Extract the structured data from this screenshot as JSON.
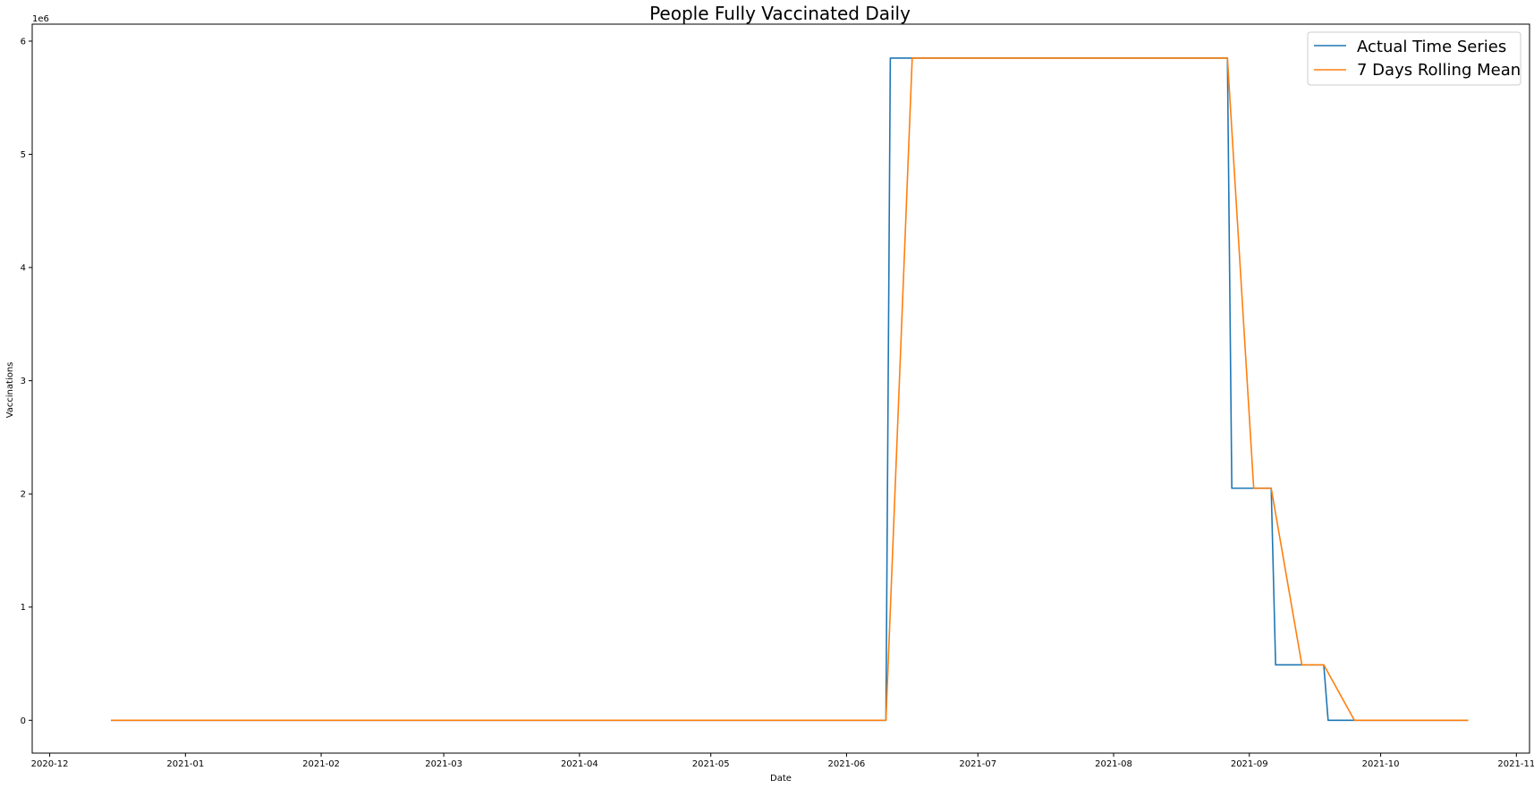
{
  "chart_data": {
    "type": "line",
    "title": "People Fully Vaccinated Daily",
    "xlabel": "Date",
    "ylabel": "Vaccinations",
    "y_offset_label": "1e6",
    "x_ticks": [
      "2020-12",
      "2021-01",
      "2021-02",
      "2021-03",
      "2021-04",
      "2021-05",
      "2021-06",
      "2021-07",
      "2021-08",
      "2021-09",
      "2021-10",
      "2021-11"
    ],
    "y_ticks": [
      0,
      1,
      2,
      3,
      4,
      5,
      6
    ],
    "xlim": [
      "2020-11-27",
      "2021-11-04"
    ],
    "ylim": [
      -290000,
      6150000
    ],
    "grid": false,
    "legend": "top-right",
    "series": [
      {
        "name": "Actual Time Series",
        "color": "#1f77b4",
        "points": [
          [
            "2020-12-15",
            0
          ],
          [
            "2021-06-10",
            0
          ],
          [
            "2021-06-11",
            5850000
          ],
          [
            "2021-08-27",
            5850000
          ],
          [
            "2021-08-28",
            2050000
          ],
          [
            "2021-09-06",
            2050000
          ],
          [
            "2021-09-07",
            490000
          ],
          [
            "2021-09-18",
            490000
          ],
          [
            "2021-09-19",
            0
          ],
          [
            "2021-10-21",
            0
          ]
        ]
      },
      {
        "name": "7 Days Rolling Mean",
        "color": "#ff7f0e",
        "points": [
          [
            "2020-12-15",
            0
          ],
          [
            "2021-06-10",
            0
          ],
          [
            "2021-06-16",
            5850000
          ],
          [
            "2021-08-27",
            5850000
          ],
          [
            "2021-09-02",
            2050000
          ],
          [
            "2021-09-06",
            2050000
          ],
          [
            "2021-09-13",
            490000
          ],
          [
            "2021-09-18",
            490000
          ],
          [
            "2021-09-25",
            0
          ],
          [
            "2021-10-21",
            0
          ]
        ]
      }
    ]
  }
}
